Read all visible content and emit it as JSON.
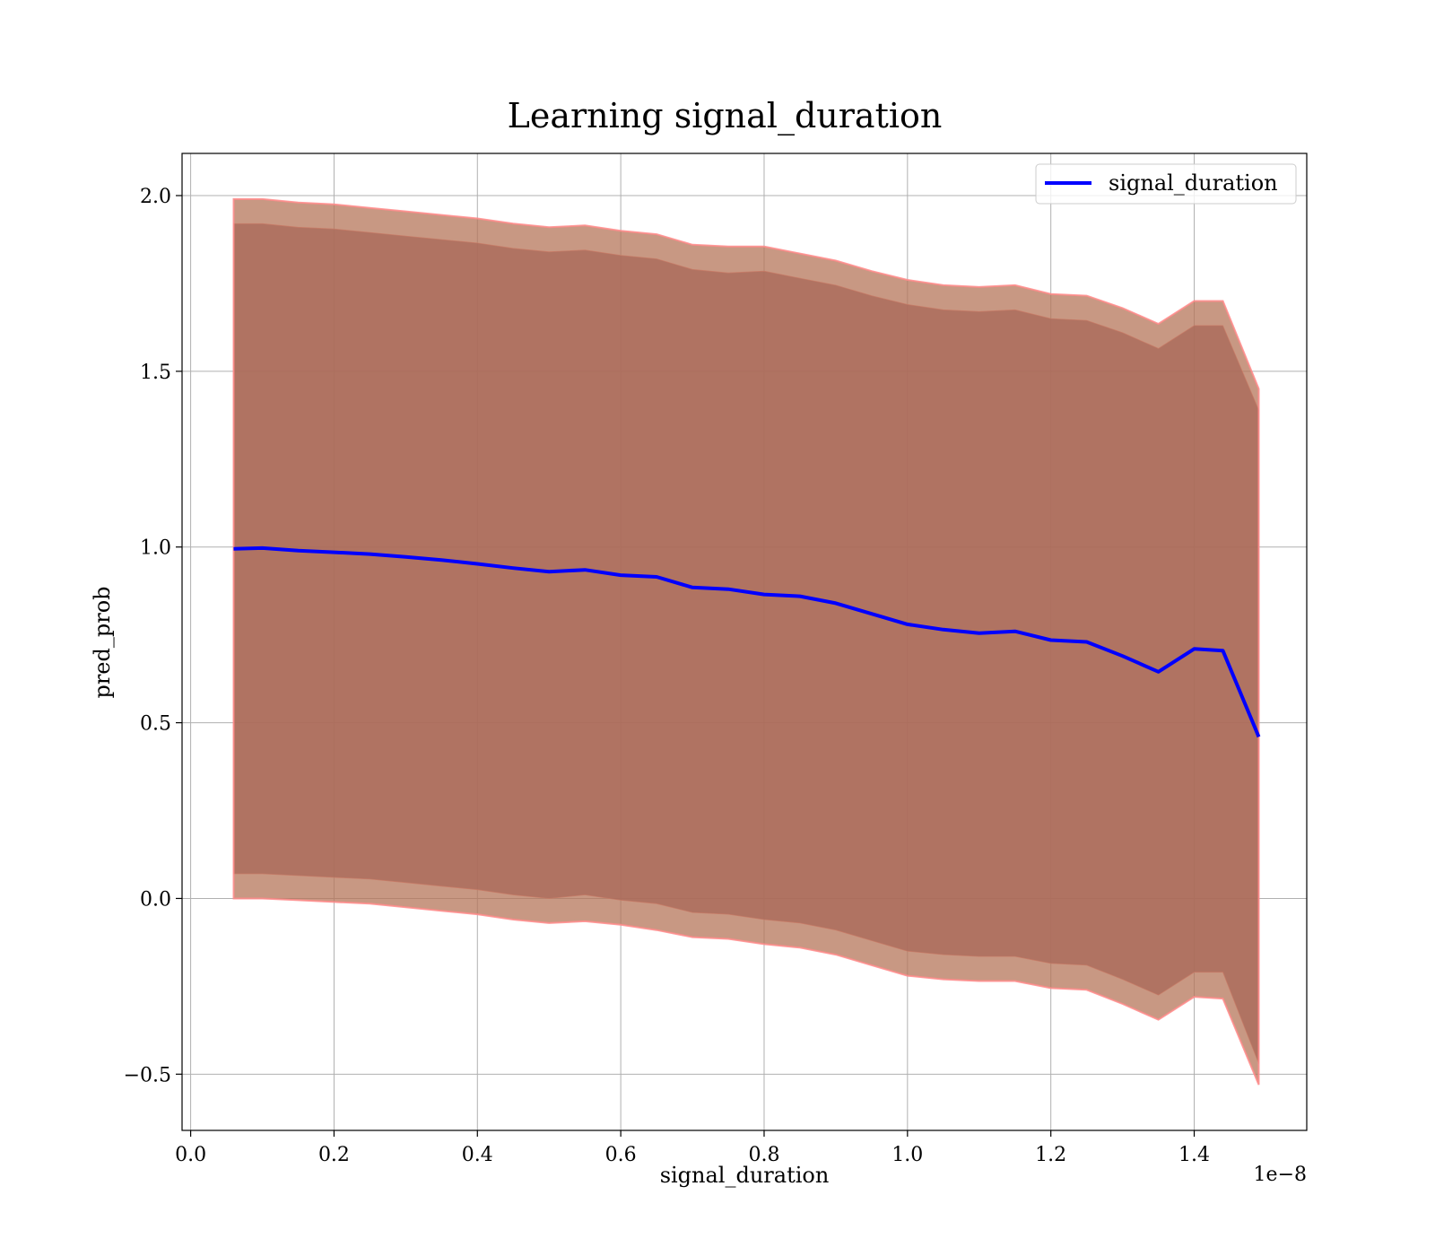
{
  "chart_data": {
    "type": "line",
    "title": "Learning signal_duration",
    "xlabel": "signal_duration",
    "ylabel": "pred_prob",
    "x_offset_label": "1e−8",
    "xlim": [
      -1.2e-10,
      1.557e-08
    ],
    "ylim": [
      -0.66,
      2.12
    ],
    "grid": true,
    "legend_position": "upper-right",
    "x_ticks": [
      0.0,
      2e-09,
      4e-09,
      6e-09,
      8e-09,
      1e-08,
      1.2e-08,
      1.4e-08
    ],
    "x_tick_labels": [
      "0.0",
      "0.2",
      "0.4",
      "0.6",
      "0.8",
      "1.0",
      "1.2",
      "1.4"
    ],
    "y_ticks": [
      -0.5,
      0.0,
      0.5,
      1.0,
      1.5,
      2.0
    ],
    "y_tick_labels": [
      "−0.5",
      "0.0",
      "0.5",
      "1.0",
      "1.5",
      "2.0"
    ],
    "series": [
      {
        "name": "signal_duration",
        "color": "#0000ff",
        "x": [
          6e-10,
          1e-09,
          1.5e-09,
          2e-09,
          2.5e-09,
          3e-09,
          3.5e-09,
          4e-09,
          4.5e-09,
          5e-09,
          5.5e-09,
          6e-09,
          6.5e-09,
          7e-09,
          7.5e-09,
          8e-09,
          8.5e-09,
          9e-09,
          9.5e-09,
          1e-08,
          1.05e-08,
          1.1e-08,
          1.15e-08,
          1.2e-08,
          1.25e-08,
          1.3e-08,
          1.35e-08,
          1.4e-08,
          1.44e-08,
          1.49e-08
        ],
        "y": [
          0.995,
          0.997,
          0.99,
          0.985,
          0.98,
          0.972,
          0.963,
          0.952,
          0.94,
          0.93,
          0.935,
          0.92,
          0.915,
          0.885,
          0.88,
          0.865,
          0.86,
          0.84,
          0.81,
          0.78,
          0.765,
          0.755,
          0.76,
          0.735,
          0.73,
          0.69,
          0.645,
          0.71,
          0.705,
          0.46
        ]
      }
    ],
    "bands": [
      {
        "color": "#8a4a5e",
        "x": [
          6e-10,
          1e-09,
          1.5e-09,
          2e-09,
          2.5e-09,
          3e-09,
          3.5e-09,
          4e-09,
          4.5e-09,
          5e-09,
          5.5e-09,
          6e-09,
          6.5e-09,
          7e-09,
          7.5e-09,
          8e-09,
          8.5e-09,
          9e-09,
          9.5e-09,
          1e-08,
          1.05e-08,
          1.1e-08,
          1.15e-08,
          1.2e-08,
          1.25e-08,
          1.3e-08,
          1.35e-08,
          1.4e-08,
          1.44e-08,
          1.49e-08
        ],
        "upper": [
          1.92,
          1.92,
          1.91,
          1.905,
          1.895,
          1.885,
          1.875,
          1.865,
          1.85,
          1.84,
          1.845,
          1.83,
          1.82,
          1.79,
          1.78,
          1.785,
          1.765,
          1.745,
          1.715,
          1.69,
          1.675,
          1.67,
          1.675,
          1.65,
          1.645,
          1.61,
          1.565,
          1.63,
          1.63,
          1.39
        ],
        "lower": [
          0.07,
          0.07,
          0.065,
          0.06,
          0.055,
          0.045,
          0.035,
          0.025,
          0.01,
          0.0,
          0.01,
          -0.005,
          -0.015,
          -0.04,
          -0.045,
          -0.06,
          -0.07,
          -0.09,
          -0.12,
          -0.15,
          -0.16,
          -0.165,
          -0.165,
          -0.185,
          -0.19,
          -0.23,
          -0.275,
          -0.21,
          -0.21,
          -0.47
        ]
      },
      {
        "color": "#b6755a",
        "x": [
          6e-10,
          1e-09,
          1.5e-09,
          2e-09,
          2.5e-09,
          3e-09,
          3.5e-09,
          4e-09,
          4.5e-09,
          5e-09,
          5.5e-09,
          6e-09,
          6.5e-09,
          7e-09,
          7.5e-09,
          8e-09,
          8.5e-09,
          9e-09,
          9.5e-09,
          1e-08,
          1.05e-08,
          1.1e-08,
          1.15e-08,
          1.2e-08,
          1.25e-08,
          1.3e-08,
          1.35e-08,
          1.4e-08,
          1.44e-08,
          1.49e-08
        ],
        "upper": [
          1.99,
          1.99,
          1.98,
          1.975,
          1.965,
          1.955,
          1.945,
          1.935,
          1.92,
          1.91,
          1.915,
          1.9,
          1.89,
          1.86,
          1.855,
          1.855,
          1.835,
          1.815,
          1.785,
          1.76,
          1.745,
          1.74,
          1.745,
          1.72,
          1.715,
          1.68,
          1.635,
          1.7,
          1.7,
          1.45
        ],
        "lower": [
          0.0,
          0.0,
          -0.005,
          -0.01,
          -0.015,
          -0.025,
          -0.035,
          -0.045,
          -0.06,
          -0.07,
          -0.065,
          -0.075,
          -0.09,
          -0.11,
          -0.115,
          -0.13,
          -0.14,
          -0.16,
          -0.19,
          -0.22,
          -0.23,
          -0.235,
          -0.235,
          -0.255,
          -0.26,
          -0.3,
          -0.345,
          -0.28,
          -0.285,
          -0.53
        ]
      }
    ]
  }
}
